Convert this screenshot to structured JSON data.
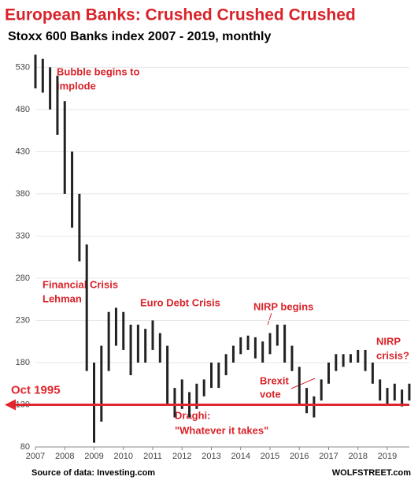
{
  "chart_data": {
    "type": "range",
    "title": "European Banks: Crushed Crushed Crushed",
    "subtitle": "Stoxx 600 Banks index 2007 - 2019, monthly",
    "source": "Source of data: Investing.com",
    "brand": "WOLFSTREET.com",
    "annotations": [
      "Bubble begins to",
      "implode",
      "Financial Crisis",
      "Lehman",
      "Euro Debt Crisis",
      "NIRP begins",
      "NIRP",
      "crisis?",
      "Brexit",
      "vote",
      "Draghi:",
      "\"Whatever it takes\""
    ],
    "reference_line": {
      "value": 130,
      "label": "Oct 1995",
      "color": "#e0262d"
    },
    "color": "#222222",
    "grid": true,
    "x": [
      2007,
      2007.25,
      2007.5,
      2007.75,
      2008,
      2008.25,
      2008.5,
      2008.75,
      2009,
      2009.25,
      2009.5,
      2009.75,
      2010,
      2010.25,
      2010.5,
      2010.75,
      2011,
      2011.25,
      2011.5,
      2011.75,
      2012,
      2012.25,
      2012.5,
      2012.75,
      2013,
      2013.25,
      2013.5,
      2013.75,
      2014,
      2014.25,
      2014.5,
      2014.75,
      2015,
      2015.25,
      2015.5,
      2015.75,
      2016,
      2016.25,
      2016.5,
      2016.75,
      2017,
      2017.25,
      2017.5,
      2017.75,
      2018,
      2018.25,
      2018.5,
      2018.75,
      2019,
      2019.25,
      2019.5,
      2019.75
    ],
    "high": [
      545,
      540,
      530,
      520,
      490,
      430,
      380,
      320,
      180,
      200,
      240,
      245,
      240,
      225,
      225,
      220,
      230,
      215,
      200,
      150,
      160,
      145,
      155,
      160,
      180,
      180,
      190,
      200,
      210,
      212,
      210,
      205,
      215,
      225,
      225,
      200,
      175,
      150,
      140,
      160,
      180,
      190,
      190,
      190,
      195,
      195,
      180,
      160,
      150,
      155,
      148,
      155
    ],
    "low": [
      505,
      500,
      480,
      450,
      380,
      340,
      300,
      170,
      85,
      110,
      170,
      200,
      195,
      165,
      180,
      180,
      195,
      180,
      130,
      115,
      125,
      115,
      125,
      140,
      150,
      150,
      165,
      180,
      190,
      195,
      185,
      180,
      190,
      200,
      180,
      170,
      130,
      120,
      115,
      135,
      155,
      170,
      175,
      180,
      180,
      170,
      155,
      135,
      130,
      135,
      128,
      135
    ],
    "xlim": [
      2007,
      2019.75
    ],
    "xticks": [
      2007,
      2008,
      2009,
      2010,
      2011,
      2012,
      2013,
      2014,
      2015,
      2016,
      2017,
      2018,
      2019
    ],
    "ylim": [
      80,
      550
    ],
    "yticks": [
      80,
      130,
      180,
      230,
      280,
      330,
      380,
      430,
      480,
      530
    ]
  }
}
